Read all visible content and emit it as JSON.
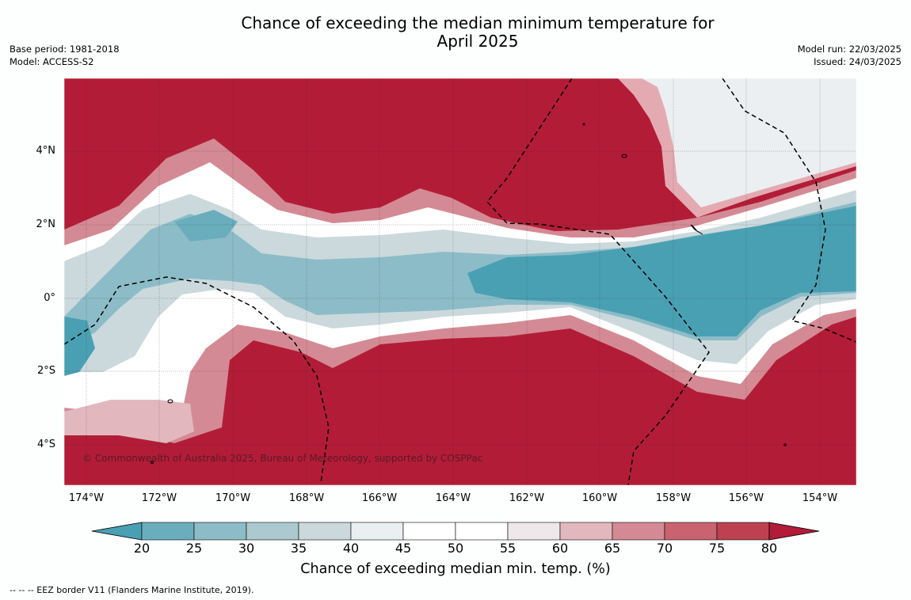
{
  "title_line1": "Chance of exceeding the median minimum temperature for",
  "title_line2": "April 2025",
  "base_period": "Base period: 1981-2018",
  "model": "Model: ACCESS-S2",
  "model_run": "Model run: 22/03/2025",
  "issued": "Issued: 24/03/2025",
  "copyright": "© Commonwealth of Australia 2025, Bureau of Meteorology, supported by COSPPac",
  "lat_labels": [
    "4°N",
    "2°N",
    "0°",
    "2°S",
    "4°S"
  ],
  "lon_labels": [
    "174°W",
    "172°W",
    "170°W",
    "168°W",
    "166°W",
    "164°W",
    "162°W",
    "160°W",
    "158°W",
    "156°W",
    "154°W"
  ],
  "colorbar": {
    "ticks": [
      "20",
      "25",
      "30",
      "35",
      "40",
      "45",
      "50",
      "55",
      "60",
      "65",
      "70",
      "75",
      "80"
    ],
    "colors": [
      "#4aa0b3",
      "#6aaebd",
      "#8cbcc7",
      "#acc9d0",
      "#cbd9dd",
      "#ebeff1",
      "#ffffff",
      "#ffffff",
      "#eee8ea",
      "#e2b8be",
      "#d48a94",
      "#c8636f",
      "#bd414f",
      "#b31c37"
    ],
    "label": "Chance of exceeding median min. temp. (%)"
  },
  "footnote": "-- -- -- EEZ border V11 (Flanders Marine Institute, 2019).",
  "map_colors": {
    "high": "#b31c37",
    "low": "#4aa0b3",
    "neutral": "#ffffff"
  }
}
